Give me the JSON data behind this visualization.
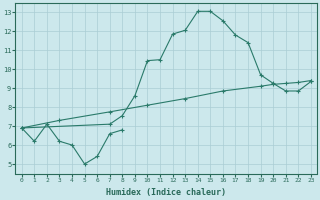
{
  "title": "",
  "xlabel": "Humidex (Indice chaleur)",
  "xlim": [
    -0.5,
    23.5
  ],
  "ylim": [
    4.5,
    13.5
  ],
  "xticks": [
    0,
    1,
    2,
    3,
    4,
    5,
    6,
    7,
    8,
    9,
    10,
    11,
    12,
    13,
    14,
    15,
    16,
    17,
    18,
    19,
    20,
    21,
    22,
    23
  ],
  "yticks": [
    5,
    6,
    7,
    8,
    9,
    10,
    11,
    12,
    13
  ],
  "background_color": "#cce8ec",
  "grid_color": "#aacdd4",
  "line_color": "#2a7a6a",
  "font_color": "#2a6a5a",
  "line1_x": [
    0,
    1,
    2,
    3,
    4,
    5,
    6,
    7,
    8
  ],
  "line1_y": [
    6.9,
    6.2,
    7.1,
    6.2,
    6.0,
    5.0,
    5.4,
    6.6,
    6.8
  ],
  "line2_x": [
    0,
    7,
    8,
    9,
    10,
    11,
    12,
    13,
    14,
    15,
    16,
    17,
    18,
    19,
    20,
    21,
    22,
    23
  ],
  "line2_y": [
    6.9,
    7.1,
    7.55,
    8.6,
    10.45,
    10.5,
    11.85,
    12.05,
    13.05,
    13.05,
    12.55,
    11.8,
    11.4,
    9.7,
    9.25,
    8.85,
    8.85,
    9.35
  ],
  "line3_x": [
    0,
    3,
    7,
    10,
    13,
    16,
    19,
    20,
    21,
    22,
    23
  ],
  "line3_y": [
    6.9,
    7.3,
    7.75,
    8.1,
    8.45,
    8.85,
    9.1,
    9.2,
    9.25,
    9.3,
    9.4
  ]
}
